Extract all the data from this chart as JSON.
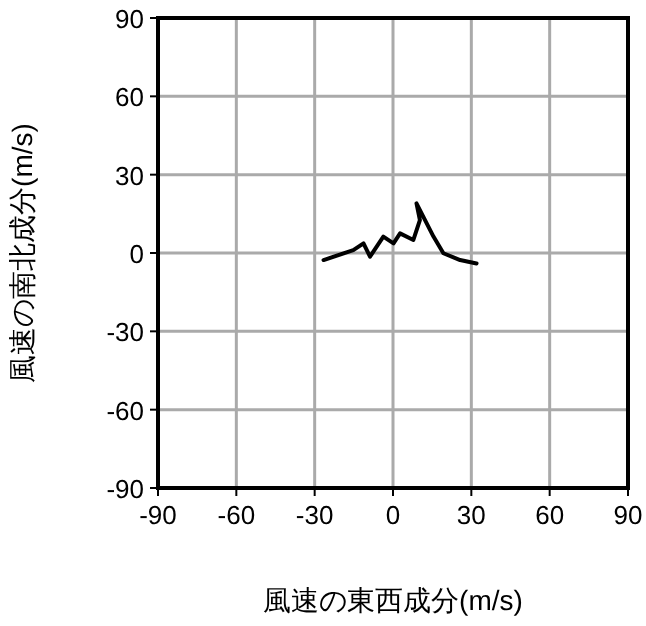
{
  "chart_data": {
    "type": "line",
    "xlabel": "風速の東西成分(m/s)",
    "ylabel": "風速の南北成分(m/s)",
    "xlim": [
      -90,
      90
    ],
    "ylim": [
      -90,
      90
    ],
    "xticks": [
      -90,
      -60,
      -30,
      0,
      30,
      60,
      90
    ],
    "yticks": [
      -90,
      -60,
      -30,
      0,
      30,
      60,
      90
    ],
    "grid": true,
    "series": [
      {
        "color": "#000000",
        "x": [
          -26.6,
          -15.2,
          -11.3,
          -8.8,
          -3.7,
          0.2,
          2.7,
          7.8,
          10.3,
          9,
          15.5,
          19.3,
          25.7,
          32
        ],
        "values": [
          -2.7,
          1.1,
          3.7,
          -1.4,
          6.3,
          3.7,
          7.5,
          5,
          12.6,
          19,
          6.3,
          -0.1,
          -2.7,
          -4
        ]
      }
    ]
  }
}
